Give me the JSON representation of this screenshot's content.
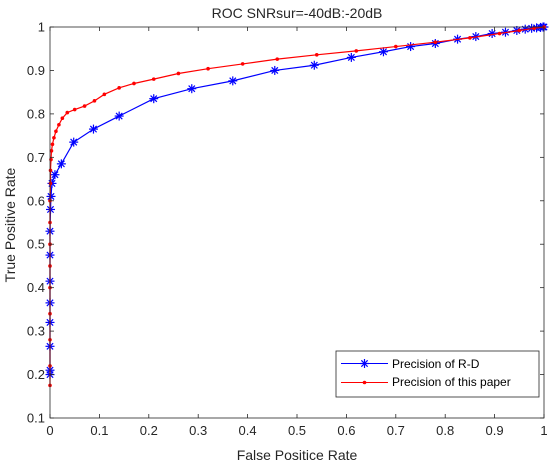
{
  "chart_data": {
    "type": "line",
    "title": "ROC SNRsur=-40dB:-20dB",
    "xlabel": "False Positice Rate",
    "ylabel": "True Positive Rate",
    "xlim": [
      0,
      1
    ],
    "ylim": [
      0.1,
      1
    ],
    "xticks": [
      "0",
      "0.1",
      "0.2",
      "0.3",
      "0.4",
      "0.5",
      "0.6",
      "0.7",
      "0.8",
      "0.9",
      "1"
    ],
    "yticks": [
      "0.1",
      "0.2",
      "0.3",
      "0.4",
      "0.5",
      "0.6",
      "0.7",
      "0.8",
      "0.9",
      "1"
    ],
    "grid": false,
    "legend_position": "bottom-right",
    "series": [
      {
        "name": "Precision of R-D",
        "color": "#0000ff",
        "marker": "asterisk",
        "x": [
          0.0,
          0.0,
          0.0,
          0.0,
          0.0,
          0.0,
          0.0,
          0.0,
          0.001,
          0.002,
          0.004,
          0.01,
          0.023,
          0.048,
          0.088,
          0.14,
          0.21,
          0.287,
          0.37,
          0.455,
          0.535,
          0.61,
          0.675,
          0.73,
          0.78,
          0.825,
          0.862,
          0.895,
          0.922,
          0.945,
          0.962,
          0.975,
          0.985,
          0.993,
          0.998,
          1.0
        ],
        "y": [
          0.2,
          0.21,
          0.265,
          0.32,
          0.365,
          0.415,
          0.475,
          0.53,
          0.58,
          0.61,
          0.64,
          0.66,
          0.685,
          0.735,
          0.765,
          0.795,
          0.835,
          0.858,
          0.876,
          0.9,
          0.912,
          0.93,
          0.943,
          0.955,
          0.962,
          0.972,
          0.978,
          0.985,
          0.988,
          0.992,
          0.995,
          0.997,
          0.998,
          0.999,
          1.0,
          1.0
        ]
      },
      {
        "name": "Precision of this paper",
        "color": "#ff0000",
        "marker": "dot",
        "x": [
          0.0,
          0.0,
          0.0,
          0.0,
          0.0,
          0.0,
          0.0,
          0.0,
          0.0,
          0.001,
          0.001,
          0.002,
          0.003,
          0.005,
          0.008,
          0.012,
          0.018,
          0.025,
          0.035,
          0.05,
          0.07,
          0.09,
          0.11,
          0.14,
          0.17,
          0.21,
          0.26,
          0.32,
          0.39,
          0.46,
          0.54,
          0.62,
          0.7,
          0.78,
          0.85,
          0.91,
          0.95,
          0.98,
          1.0
        ],
        "y": [
          0.175,
          0.22,
          0.28,
          0.34,
          0.4,
          0.45,
          0.5,
          0.55,
          0.6,
          0.64,
          0.67,
          0.695,
          0.715,
          0.73,
          0.745,
          0.76,
          0.775,
          0.79,
          0.803,
          0.81,
          0.818,
          0.83,
          0.845,
          0.86,
          0.87,
          0.88,
          0.893,
          0.904,
          0.915,
          0.926,
          0.936,
          0.945,
          0.955,
          0.965,
          0.975,
          0.985,
          0.992,
          0.997,
          1.0
        ]
      }
    ]
  }
}
